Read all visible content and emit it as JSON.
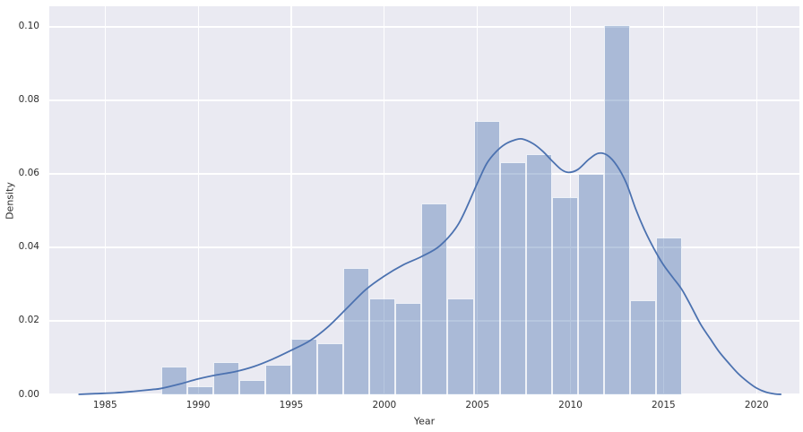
{
  "figure": {
    "title": "",
    "colors": {
      "figure_bg": "#ffffff",
      "axes_bg": "#eaeaf2",
      "grid": "#ffffff",
      "bar_fill": "rgba(76,114,176,0.40)",
      "bar_edge": "rgba(255,255,255,0.80)",
      "kde_line": "#4c72b0",
      "text": "#2e2e2e"
    }
  },
  "chart_data": {
    "type": "bar",
    "variant": "histogram_with_kde_overlay",
    "title": "",
    "xlabel": "Year",
    "ylabel": "Density",
    "xlim": [
      1982.0,
      2022.3
    ],
    "ylim": [
      0,
      0.1056
    ],
    "grid": true,
    "legend": false,
    "xticks": [
      1985,
      1990,
      1995,
      2000,
      2005,
      2010,
      2015,
      2020
    ],
    "xtick_labels": [
      "1985",
      "1990",
      "1995",
      "2000",
      "2005",
      "2010",
      "2015",
      "2020"
    ],
    "yticks": [
      0.0,
      0.02,
      0.04,
      0.06,
      0.08,
      0.1
    ],
    "ytick_labels": [
      "0.00",
      "0.02",
      "0.04",
      "0.06",
      "0.08",
      "0.10"
    ],
    "histogram": {
      "bin_start": 1988.0,
      "bin_width": 1.4,
      "bin_edges": [
        1988.0,
        1989.4,
        1990.8,
        1992.2,
        1993.6,
        1995.0,
        1996.4,
        1997.8,
        1999.2,
        2000.6,
        2002.0,
        2003.4,
        2004.8,
        2006.2,
        2007.6,
        2009.0,
        2010.4,
        2011.8,
        2013.2,
        2014.6,
        2016.0
      ],
      "densities": [
        0.0075,
        0.0023,
        0.0088,
        0.004,
        0.008,
        0.015,
        0.014,
        0.0343,
        0.0262,
        0.0248,
        0.0519,
        0.0262,
        0.0743,
        0.0632,
        0.0653,
        0.0537,
        0.0599,
        0.1006,
        0.0255,
        0.0428
      ]
    },
    "kde": {
      "points": [
        [
          1983.6,
          0.0
        ],
        [
          1984.5,
          0.0002
        ],
        [
          1985.5,
          0.0004
        ],
        [
          1986.5,
          0.0008
        ],
        [
          1987.5,
          0.0013
        ],
        [
          1988.0,
          0.0016
        ],
        [
          1989.0,
          0.0028
        ],
        [
          1990.0,
          0.0042
        ],
        [
          1991.0,
          0.0053
        ],
        [
          1992.0,
          0.0062
        ],
        [
          1993.0,
          0.0076
        ],
        [
          1994.0,
          0.0096
        ],
        [
          1995.0,
          0.012
        ],
        [
          1996.0,
          0.0146
        ],
        [
          1997.0,
          0.0185
        ],
        [
          1998.0,
          0.0235
        ],
        [
          1999.0,
          0.0285
        ],
        [
          2000.0,
          0.0322
        ],
        [
          2001.0,
          0.0352
        ],
        [
          2002.0,
          0.0375
        ],
        [
          2003.0,
          0.0405
        ],
        [
          2004.0,
          0.0465
        ],
        [
          2005.0,
          0.0575
        ],
        [
          2005.5,
          0.0628
        ],
        [
          2006.0,
          0.066
        ],
        [
          2006.5,
          0.0681
        ],
        [
          2007.0,
          0.0692
        ],
        [
          2007.4,
          0.0695
        ],
        [
          2008.0,
          0.0682
        ],
        [
          2008.5,
          0.0662
        ],
        [
          2009.0,
          0.0636
        ],
        [
          2009.5,
          0.0612
        ],
        [
          2009.9,
          0.0604
        ],
        [
          2010.4,
          0.0612
        ],
        [
          2011.0,
          0.064
        ],
        [
          2011.5,
          0.0656
        ],
        [
          2012.0,
          0.065
        ],
        [
          2012.5,
          0.0622
        ],
        [
          2013.0,
          0.0575
        ],
        [
          2013.5,
          0.0505
        ],
        [
          2014.0,
          0.0445
        ],
        [
          2014.5,
          0.0395
        ],
        [
          2015.0,
          0.0352
        ],
        [
          2015.5,
          0.0318
        ],
        [
          2016.0,
          0.0284
        ],
        [
          2016.5,
          0.0238
        ],
        [
          2017.0,
          0.019
        ],
        [
          2017.5,
          0.0152
        ],
        [
          2018.0,
          0.0115
        ],
        [
          2018.5,
          0.0085
        ],
        [
          2019.0,
          0.0057
        ],
        [
          2019.5,
          0.0035
        ],
        [
          2020.0,
          0.0017
        ],
        [
          2020.5,
          0.0006
        ],
        [
          2021.0,
          0.0001
        ],
        [
          2021.3,
          0.0
        ]
      ]
    }
  }
}
